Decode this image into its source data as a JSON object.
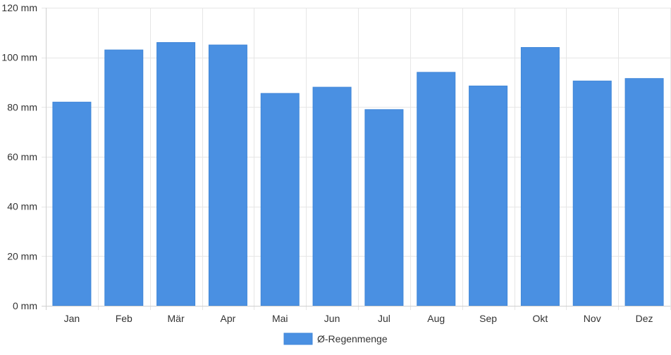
{
  "chart_data": {
    "type": "bar",
    "categories": [
      "Jan",
      "Feb",
      "Mär",
      "Apr",
      "Mai",
      "Jun",
      "Jul",
      "Aug",
      "Sep",
      "Okt",
      "Nov",
      "Dez"
    ],
    "series": [
      {
        "name": "Ø-Regenmenge",
        "color": "#4a90e2",
        "values": [
          82,
          103,
          106,
          105,
          85.5,
          88,
          79,
          94,
          88.5,
          104,
          90.5,
          91.5
        ]
      }
    ],
    "yticks": [
      "0 mm",
      "20 mm",
      "40 mm",
      "60 mm",
      "80 mm",
      "100 mm",
      "120 mm"
    ],
    "ylim": [
      0,
      120
    ],
    "grid": true,
    "legend_position": "bottom-center"
  }
}
